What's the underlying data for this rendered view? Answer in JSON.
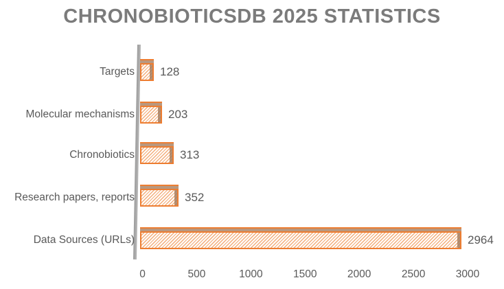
{
  "chart_data": {
    "type": "bar",
    "orientation": "horizontal",
    "title": "CHRONOBIOTICSDB 2025 STATISTICS",
    "categories": [
      "Targets",
      "Molecular mechanisms",
      "Chronobiotics",
      "Research papers, reports",
      "Data Sources (URLs)"
    ],
    "values": [
      128,
      203,
      313,
      352,
      2964
    ],
    "data_labels": [
      "128",
      "203",
      "313",
      "352",
      "2964"
    ],
    "xlabel": "",
    "ylabel": "",
    "xlim": [
      0,
      3000
    ],
    "x_ticks": [
      0,
      500,
      1000,
      1500,
      2000,
      2500,
      3000
    ],
    "x_tick_labels": [
      "0",
      "500",
      "1000",
      "1500",
      "2000",
      "2500",
      "3000"
    ],
    "grid": false,
    "legend": false,
    "style": "3d-hatched-bars",
    "colors": {
      "bar_border": "#ED7D31",
      "bar_hatch": "#f3ae7c",
      "bar_hatch_background": "#fffdfb",
      "bar_top_face": "#b9987f",
      "bar_side_face": "#a67e5f",
      "axis_line": "#a8a8a8",
      "title_text": "#7b7b7b",
      "label_text": "#595959",
      "background": "#ffffff"
    }
  }
}
